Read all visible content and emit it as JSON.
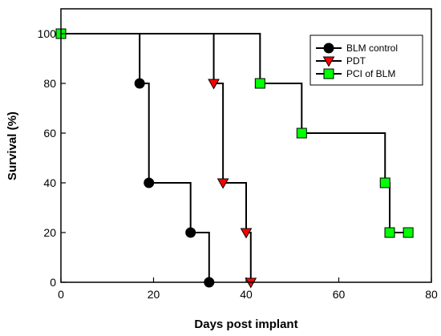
{
  "chart_data": {
    "type": "line",
    "step": true,
    "xlabel": "Days post implant",
    "ylabel": "Survival (%)",
    "xlim": [
      0,
      80
    ],
    "ylim": [
      0,
      100
    ],
    "xticks": [
      0,
      20,
      40,
      60,
      80
    ],
    "yticks": [
      0,
      20,
      40,
      60,
      80,
      100
    ],
    "grid": false,
    "legend_position": "top-right",
    "series": [
      {
        "name": "BLM control",
        "marker": "circle",
        "color": "#000000",
        "steps": [
          [
            0,
            100
          ],
          [
            17,
            80
          ],
          [
            19,
            40
          ],
          [
            28,
            20
          ],
          [
            32,
            0
          ]
        ],
        "points": [
          [
            17,
            80
          ],
          [
            19,
            40
          ],
          [
            28,
            20
          ],
          [
            32,
            0
          ]
        ]
      },
      {
        "name": "PDT",
        "marker": "triangle-down",
        "color": "#ff0000",
        "steps": [
          [
            0,
            100
          ],
          [
            33,
            80
          ],
          [
            35,
            40
          ],
          [
            40,
            20
          ],
          [
            41,
            0
          ]
        ],
        "points": [
          [
            33,
            80
          ],
          [
            35,
            40
          ],
          [
            40,
            20
          ],
          [
            41,
            0
          ]
        ]
      },
      {
        "name": "PCI of BLM",
        "marker": "square",
        "color": "#00ff00",
        "steps": [
          [
            0,
            100
          ],
          [
            43,
            80
          ],
          [
            52,
            60
          ],
          [
            70,
            40
          ],
          [
            71,
            20
          ],
          [
            75,
            20
          ]
        ],
        "points": [
          [
            0,
            100
          ],
          [
            43,
            80
          ],
          [
            52,
            60
          ],
          [
            70,
            40
          ],
          [
            71,
            20
          ],
          [
            75,
            20
          ]
        ]
      }
    ]
  }
}
